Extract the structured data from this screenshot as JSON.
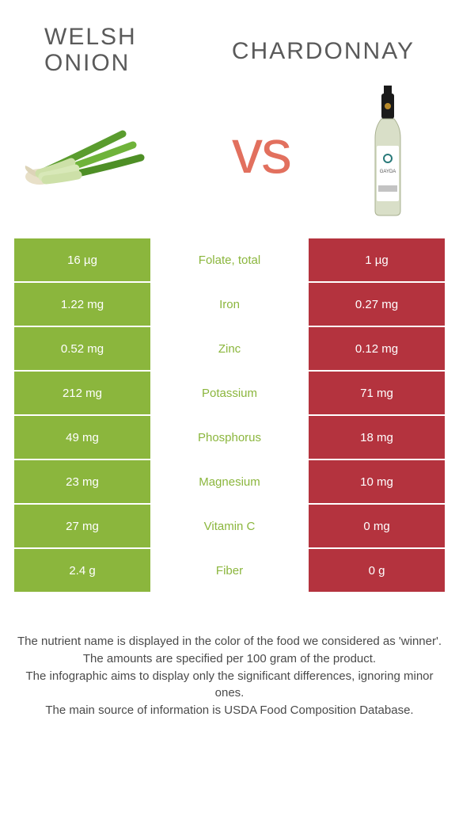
{
  "titles": {
    "left_line1": "Welsh",
    "left_line2": "onion",
    "right": "Chardonnay",
    "vs": "vs"
  },
  "colors": {
    "left_bg": "#8bb63d",
    "right_bg": "#b4333e",
    "mid_text_left_winner": "#8bb63d",
    "mid_text_right_winner": "#b4333e",
    "vs_color": "#e2705e"
  },
  "rows": [
    {
      "left": "16 µg",
      "label": "Folate, total",
      "right": "1 µg",
      "winner": "left"
    },
    {
      "left": "1.22 mg",
      "label": "Iron",
      "right": "0.27 mg",
      "winner": "left"
    },
    {
      "left": "0.52 mg",
      "label": "Zinc",
      "right": "0.12 mg",
      "winner": "left"
    },
    {
      "left": "212 mg",
      "label": "Potassium",
      "right": "71 mg",
      "winner": "left"
    },
    {
      "left": "49 mg",
      "label": "Phosphorus",
      "right": "18 mg",
      "winner": "left"
    },
    {
      "left": "23 mg",
      "label": "Magnesium",
      "right": "10 mg",
      "winner": "left"
    },
    {
      "left": "27 mg",
      "label": "Vitamin C",
      "right": "0 mg",
      "winner": "left"
    },
    {
      "left": "2.4 g",
      "label": "Fiber",
      "right": "0 g",
      "winner": "left"
    }
  ],
  "footer": {
    "line1": "The nutrient name is displayed in the color of the food we considered as 'winner'.",
    "line2": "The amounts are specified per 100 gram of the product.",
    "line3": "The infographic aims to display only the significant differences, ignoring minor ones.",
    "line4": "The main source of information is USDA Food Composition Database."
  }
}
